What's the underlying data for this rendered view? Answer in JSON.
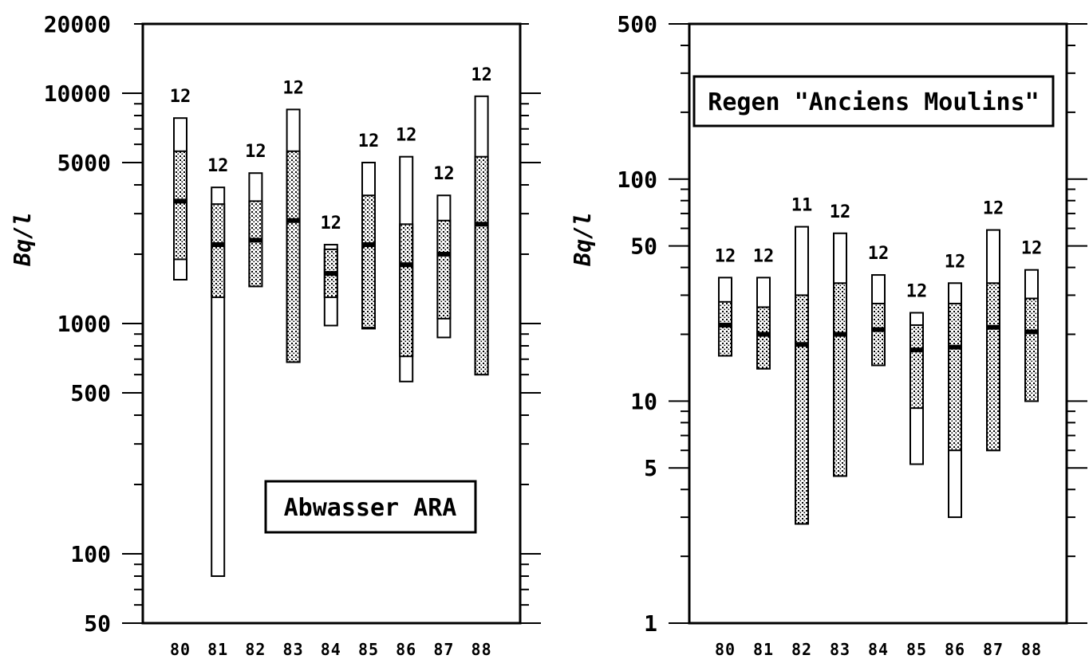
{
  "chart_data": [
    {
      "type": "bar",
      "title": "Abwasser ARA",
      "ylabel": "Bq/l",
      "xlabel": "",
      "yscale": "log",
      "ylim": [
        50,
        20000
      ],
      "yticks": [
        50,
        100,
        500,
        1000,
        5000,
        10000,
        20000
      ],
      "ytick_labels": [
        "50",
        "100",
        "500",
        "1000",
        "5000",
        "10000",
        "20000"
      ],
      "categories": [
        "80",
        "81",
        "82",
        "83",
        "84",
        "85",
        "86",
        "87",
        "88"
      ],
      "category_labels": [
        "80",
        "81",
        "82",
        "83",
        "84",
        "85",
        "86",
        "87",
        "88"
      ],
      "n": [
        "12",
        "12",
        "12",
        "12",
        "12",
        "12",
        "12",
        "12",
        "12"
      ],
      "min": [
        1550,
        80,
        1450,
        680,
        980,
        950,
        560,
        870,
        600
      ],
      "q1": [
        1900,
        1300,
        1450,
        680,
        1300,
        960,
        720,
        1050,
        600
      ],
      "median": [
        3400,
        2200,
        2300,
        2800,
        1650,
        2200,
        1800,
        2000,
        2700
      ],
      "q3": [
        5600,
        3300,
        3400,
        5600,
        2100,
        3600,
        2700,
        2800,
        5300
      ],
      "max": [
        7800,
        3900,
        4500,
        8500,
        2200,
        5000,
        5300,
        3600,
        9700
      ],
      "label_box_position": "bottom-right"
    },
    {
      "type": "bar",
      "title": "Regen \"Anciens Moulins\"",
      "ylabel": "Bq/l",
      "xlabel": "",
      "yscale": "log",
      "ylim": [
        1,
        500
      ],
      "yticks": [
        1,
        5,
        10,
        50,
        100,
        500
      ],
      "ytick_labels": [
        "1",
        "5",
        "10",
        "50",
        "100",
        "500"
      ],
      "categories": [
        "80",
        "81",
        "82",
        "83",
        "84",
        "85",
        "86",
        "87",
        "88"
      ],
      "category_labels": [
        "80",
        "81",
        "82",
        "83",
        "84",
        "85",
        "86",
        "87",
        "88"
      ],
      "n": [
        "12",
        "12",
        "11",
        "12",
        "12",
        "12",
        "12",
        "12",
        "12"
      ],
      "min": [
        16,
        14,
        2.8,
        4.6,
        14.5,
        5.2,
        3,
        6,
        10
      ],
      "q1": [
        16,
        14,
        2.8,
        4.6,
        14.5,
        9.3,
        6,
        6,
        10
      ],
      "median": [
        22,
        20,
        18,
        20,
        21,
        17,
        17.5,
        21.5,
        20.5
      ],
      "q3": [
        28,
        26.5,
        30,
        34,
        27.5,
        22,
        27.5,
        34,
        29
      ],
      "max": [
        36,
        36,
        61,
        57,
        37,
        25,
        34,
        59,
        39
      ],
      "label_box_position": "top-right"
    }
  ]
}
